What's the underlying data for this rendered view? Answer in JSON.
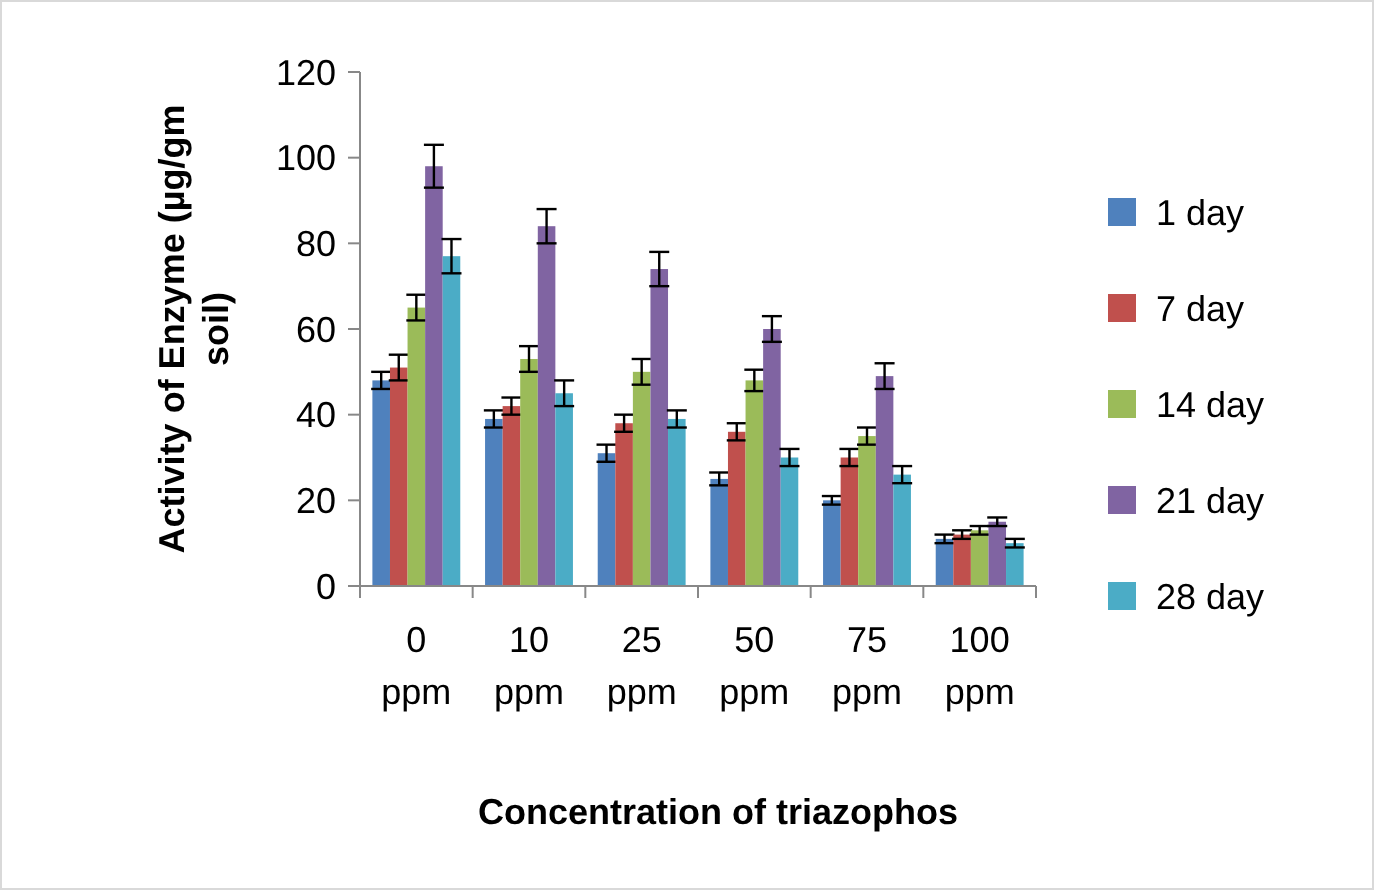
{
  "chart_data": {
    "type": "bar",
    "xlabel": "Concentration of triazophos",
    "ylabel": "Activity of Enzyme (µg/gm soil)",
    "categories": [
      "0 ppm",
      "10 ppm",
      "25 ppm",
      "50 ppm",
      "75 ppm",
      "100 ppm"
    ],
    "series": [
      {
        "name": "1 day",
        "color": "#4f81bd",
        "values": [
          48,
          39,
          31,
          25,
          20,
          11
        ],
        "errors": [
          2,
          2,
          2,
          1.5,
          1,
          1
        ]
      },
      {
        "name": "7 day",
        "color": "#c0504d",
        "values": [
          51,
          42,
          38,
          36,
          30,
          12
        ],
        "errors": [
          3,
          2,
          2,
          2,
          2,
          1
        ]
      },
      {
        "name": "14 day",
        "color": "#9bbb59",
        "values": [
          65,
          53,
          50,
          48,
          35,
          13
        ],
        "errors": [
          3,
          3,
          3,
          2.5,
          2,
          1
        ]
      },
      {
        "name": "21 day",
        "color": "#8064a2",
        "values": [
          98,
          84,
          74,
          60,
          49,
          15
        ],
        "errors": [
          5,
          4,
          4,
          3,
          3,
          1
        ]
      },
      {
        "name": "28 day",
        "color": "#4bacc6",
        "values": [
          77,
          45,
          39,
          30,
          26,
          10
        ],
        "errors": [
          4,
          3,
          2,
          2,
          2,
          1
        ]
      }
    ],
    "ylim": [
      0,
      120
    ],
    "yticks": [
      0,
      20,
      40,
      60,
      80,
      100,
      120
    ],
    "grid": false,
    "legend": "right"
  }
}
